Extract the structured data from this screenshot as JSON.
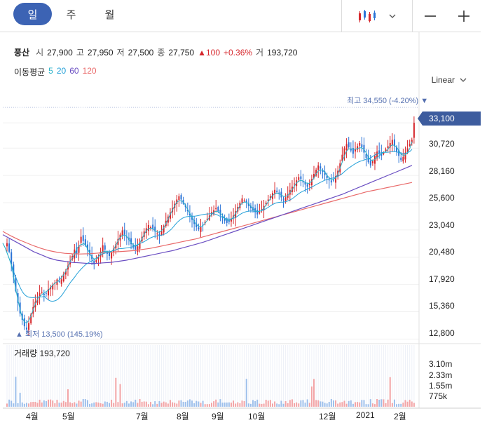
{
  "header": {
    "periods": [
      "일",
      "주",
      "월"
    ],
    "active_period": "일",
    "chart_type_icon": "candlestick-icon",
    "minus_icon": "zoom-out-icon",
    "plus_icon": "zoom-in-icon"
  },
  "stock": {
    "name": "풍산",
    "open_label": "시",
    "open": "27,900",
    "high_label": "고",
    "high": "27,950",
    "low_label": "저",
    "low": "27,500",
    "close_label": "종",
    "close": "27,750",
    "change": "▲100",
    "change_pct": "+0.36%",
    "volume_label": "거",
    "volume": "193,720"
  },
  "moving_average": {
    "label": "이동평균",
    "periods": [
      "5",
      "20",
      "60",
      "120"
    ]
  },
  "scale_mode": "Linear",
  "current_price_tag": "33,100",
  "annotations": {
    "high": "최고 34,550 (-4.20%) ▼",
    "low": "▲ 최저 13,500 (145.19%)"
  },
  "volume_panel": {
    "title": "거래량",
    "value": "193,720"
  },
  "colors": {
    "accent": "#3c63b4",
    "up": "#d6262b",
    "down": "#2a73d6",
    "ma5": "#2bb3c8",
    "ma20": "#23a0d8",
    "ma60": "#6a4ec2",
    "ma120": "#e96a6a"
  },
  "chart_data": [
    {
      "type": "candlestick",
      "y_ticks": [
        "33,100",
        "30,720",
        "28,160",
        "25,600",
        "23,040",
        "20,480",
        "17,920",
        "15,360",
        "12,800"
      ],
      "x_ticks": [
        "4월",
        "5월",
        "7월",
        "8월",
        "9월",
        "10월",
        "12월",
        "2021",
        "2월"
      ],
      "ylim": [
        12500,
        36200
      ],
      "close_series": [
        21800,
        21000,
        19800,
        18600,
        17300,
        16200,
        15200,
        14600,
        14000,
        13700,
        14300,
        15100,
        15800,
        16300,
        16600,
        17100,
        17200,
        16900,
        17100,
        17500,
        17700,
        17900,
        18100,
        18400,
        18200,
        18400,
        18900,
        19200,
        19700,
        20100,
        20600,
        21200,
        20800,
        21600,
        22400,
        22000,
        21600,
        21200,
        20700,
        20300,
        19800,
        20200,
        20500,
        21000,
        21600,
        21200,
        20800,
        20600,
        20900,
        21300,
        21700,
        22200,
        22600,
        23000,
        22600,
        22400,
        22100,
        21700,
        21400,
        21200,
        21500,
        21900,
        22400,
        22900,
        23200,
        23500,
        23300,
        23100,
        22900,
        22700,
        22500,
        22900,
        23400,
        23900,
        24300,
        24700,
        25100,
        25500,
        25900,
        26200,
        25900,
        25500,
        25200,
        24800,
        24400,
        24000,
        23600,
        23300,
        23100,
        23300,
        23500,
        23800,
        24100,
        24400,
        24700,
        24900,
        25100,
        24800,
        24500,
        24200,
        23900,
        23700,
        23800,
        24100,
        24400,
        24800,
        25200,
        25600,
        26000,
        25800,
        25600,
        25300,
        25100,
        24900,
        24700,
        24500,
        24700,
        25000,
        25300,
        25600,
        25900,
        26200,
        26500,
        26800,
        26600,
        26400,
        26100,
        25900,
        26100,
        26400,
        26800,
        27100,
        27400,
        27700,
        28000,
        27800,
        27500,
        27300,
        27100,
        27400,
        27800,
        28300,
        28700,
        29100,
        28800,
        28500,
        28200,
        27900,
        27700,
        27500,
        27700,
        28100,
        28600,
        29300,
        30100,
        30700,
        31100,
        30800,
        30500,
        30200,
        30600,
        30900,
        31200,
        30800,
        30300,
        29800,
        29400,
        29100,
        29500,
        30000,
        30400,
        30200,
        30000,
        30300,
        30600,
        30900,
        31200,
        31500,
        30900,
        30400,
        30000,
        29600,
        29900,
        30300,
        30700,
        31100,
        31500,
        33100
      ],
      "ma60_series": [
        22600,
        22200,
        21800,
        21400,
        21000,
        20700,
        20400,
        20200,
        20100,
        20000,
        19950,
        19900,
        19900,
        19950,
        20000,
        20100,
        20200,
        20350,
        20500,
        20650,
        20800,
        20950,
        21100,
        21300,
        21500,
        21700,
        21900,
        22150,
        22400,
        22650,
        22900,
        23150,
        23400,
        23650,
        23900,
        24150,
        24400,
        24650,
        24900,
        25150,
        25400,
        25650,
        25900,
        26150,
        26400,
        26700,
        27000,
        27300,
        27600,
        27900,
        28200,
        28500,
        28800,
        29100
      ],
      "ma120_series": [
        22900,
        22500,
        22150,
        21850,
        21550,
        21300,
        21100,
        20950,
        20850,
        20800,
        20780,
        20800,
        20850,
        20900,
        20950,
        21000,
        21050,
        21100,
        21200,
        21300,
        21450,
        21600,
        21750,
        21900,
        22050,
        22200,
        22400,
        22600,
        22800,
        23000,
        23200,
        23400,
        23600,
        23800,
        24000,
        24200,
        24400,
        24600,
        24800,
        25000,
        25200,
        25400,
        25600,
        25800,
        26000,
        26200,
        26400,
        26600,
        26750,
        26900,
        27050,
        27200,
        27350,
        27500
      ],
      "volume_ticks": [
        "3.10m",
        "2.33m",
        "1.55m",
        "775k"
      ],
      "volume_max": 3100000
    }
  ]
}
